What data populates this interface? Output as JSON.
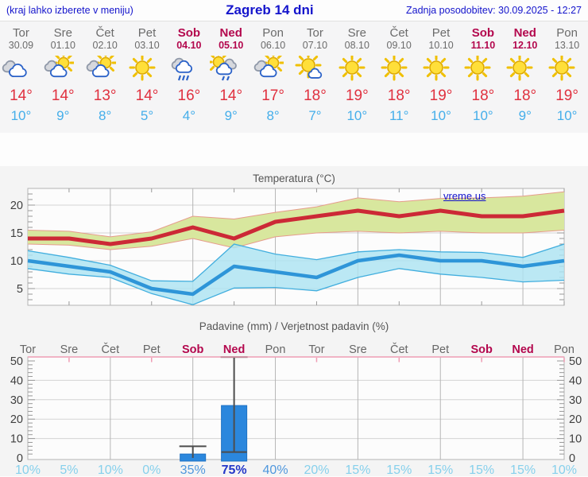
{
  "header": {
    "left_note": "(kraj lahko izberete v meniju)",
    "title": "Zagreb 14 dni",
    "updated": "Zadnja posodobitev: 30.09.2025 - 12:27"
  },
  "days": [
    {
      "name": "Tor",
      "date": "30.09",
      "weekend": false,
      "icon": "cloudy",
      "high": "14°",
      "low": "10°",
      "pop": "10%",
      "pop_level": "low"
    },
    {
      "name": "Sre",
      "date": "01.10",
      "weekend": false,
      "icon": "partly-cloudy",
      "high": "14°",
      "low": "9°",
      "pop": "5%",
      "pop_level": "low"
    },
    {
      "name": "Čet",
      "date": "02.10",
      "weekend": false,
      "icon": "partly-cloudy",
      "high": "13°",
      "low": "8°",
      "pop": "10%",
      "pop_level": "low"
    },
    {
      "name": "Pet",
      "date": "03.10",
      "weekend": false,
      "icon": "sunny",
      "high": "14°",
      "low": "5°",
      "pop": "0%",
      "pop_level": "low"
    },
    {
      "name": "Sob",
      "date": "04.10",
      "weekend": true,
      "icon": "rain",
      "high": "16°",
      "low": "4°",
      "pop": "35%",
      "pop_level": "medium"
    },
    {
      "name": "Ned",
      "date": "05.10",
      "weekend": true,
      "icon": "sun-rain",
      "high": "14°",
      "low": "9°",
      "pop": "75%",
      "pop_level": "high"
    },
    {
      "name": "Pon",
      "date": "06.10",
      "weekend": false,
      "icon": "partly-cloudy",
      "high": "17°",
      "low": "8°",
      "pop": "40%",
      "pop_level": "medium"
    },
    {
      "name": "Tor",
      "date": "07.10",
      "weekend": false,
      "icon": "mostly-sunny",
      "high": "18°",
      "low": "7°",
      "pop": "20%",
      "pop_level": "low"
    },
    {
      "name": "Sre",
      "date": "08.10",
      "weekend": false,
      "icon": "sunny",
      "high": "19°",
      "low": "10°",
      "pop": "15%",
      "pop_level": "low"
    },
    {
      "name": "Čet",
      "date": "09.10",
      "weekend": false,
      "icon": "sunny",
      "high": "18°",
      "low": "11°",
      "pop": "15%",
      "pop_level": "low"
    },
    {
      "name": "Pet",
      "date": "10.10",
      "weekend": false,
      "icon": "sunny",
      "high": "19°",
      "low": "10°",
      "pop": "15%",
      "pop_level": "low"
    },
    {
      "name": "Sob",
      "date": "11.10",
      "weekend": true,
      "icon": "sunny",
      "high": "18°",
      "low": "10°",
      "pop": "15%",
      "pop_level": "low"
    },
    {
      "name": "Ned",
      "date": "12.10",
      "weekend": true,
      "icon": "sunny",
      "high": "18°",
      "low": "9°",
      "pop": "15%",
      "pop_level": "low"
    },
    {
      "name": "Pon",
      "date": "13.10",
      "weekend": false,
      "icon": "sunny",
      "high": "19°",
      "low": "10°",
      "pop": "10%",
      "pop_level": "low"
    }
  ],
  "temp_chart": {
    "title": "Temperatura (°C)",
    "watermark": "vreme.us",
    "y_ticks": [
      5,
      10,
      15,
      20
    ]
  },
  "precip_chart": {
    "title": "Padavine (mm) / Verjetnost padavin (%)",
    "y_ticks": [
      0,
      10,
      20,
      30,
      40,
      50
    ]
  },
  "colors": {
    "header_blue": "#1414cc",
    "weekday_gray": "#6b6b6b",
    "weekend_red": "#b3074d",
    "high_temp_red": "#e0313f",
    "low_temp_blue": "#45aeea",
    "max_line": "#cc2936",
    "max_band": "#d8e79e",
    "max_band_edge": "#e69c8c",
    "min_line": "#2e95d8",
    "min_band": "#ace3f2",
    "min_band_edge": "#41aede",
    "bar_blue": "#2b87dd",
    "bar_edge": "#1f72c4",
    "whisker_gray": "#4d4d4d",
    "pop_low": "#86d0ec",
    "pop_medium": "#4f97dd",
    "pop_high": "#2438c8",
    "grid_pink": "#ef9db4",
    "axis_text": "#3f3f3f"
  },
  "chart_data": [
    {
      "type": "line",
      "title": "Temperatura (°C)",
      "x": [
        "30.09",
        "01.10",
        "02.10",
        "03.10",
        "04.10",
        "05.10",
        "06.10",
        "07.10",
        "08.10",
        "09.10",
        "10.10",
        "11.10",
        "12.10",
        "13.10"
      ],
      "ylim": [
        2,
        23
      ],
      "yticks": [
        5,
        10,
        15,
        20
      ],
      "grid": true,
      "series": [
        {
          "name": "max_temp",
          "values": [
            14,
            14,
            13,
            14,
            16,
            14,
            17,
            18,
            19,
            18,
            19,
            18,
            18,
            19
          ],
          "color": "#cc2936"
        },
        {
          "name": "max_temp_range_upper",
          "values": [
            15.5,
            15.3,
            14.3,
            15.2,
            18,
            17.5,
            18.7,
            19.7,
            21.3,
            20.6,
            21.2,
            21.3,
            21.6,
            22.4
          ],
          "color": "#d8e79e"
        },
        {
          "name": "max_temp_range_lower",
          "values": [
            13,
            12.8,
            12,
            12.6,
            14,
            12.3,
            14.3,
            15,
            15.3,
            15,
            15.3,
            15,
            15,
            15.5
          ],
          "color": "#d8e79e"
        },
        {
          "name": "min_temp",
          "values": [
            10,
            9,
            8,
            5,
            4,
            9,
            8,
            7,
            10,
            11,
            10,
            10,
            9,
            10
          ],
          "color": "#2e95d8"
        },
        {
          "name": "min_temp_range_upper",
          "values": [
            11.8,
            10.6,
            9.2,
            6.4,
            6.3,
            13,
            11.2,
            10.2,
            11.6,
            12,
            11.6,
            11.5,
            10.6,
            13
          ],
          "color": "#ace3f2"
        },
        {
          "name": "min_temp_range_lower",
          "values": [
            8.6,
            7.6,
            7,
            4.1,
            2.1,
            5.1,
            5.2,
            4.6,
            7,
            8.6,
            7.6,
            7,
            6.2,
            6.5
          ],
          "color": "#ace3f2"
        }
      ]
    },
    {
      "type": "bar",
      "title": "Padavine (mm) / Verjetnost padavin (%)",
      "categories": [
        "Tor",
        "Sre",
        "Čet",
        "Pet",
        "Sob",
        "Ned",
        "Pon",
        "Tor",
        "Sre",
        "Čet",
        "Pet",
        "Sob",
        "Ned",
        "Pon"
      ],
      "ylim": [
        0,
        52
      ],
      "yticks": [
        0,
        10,
        20,
        30,
        40,
        50
      ],
      "grid": true,
      "series": [
        {
          "name": "padavine_mm",
          "values": [
            0,
            0,
            0,
            0,
            2,
            27,
            0,
            0,
            0,
            0,
            0,
            0,
            0,
            0
          ],
          "color": "#2b87dd"
        },
        {
          "name": "razpon_max_mm",
          "values": [
            0,
            0,
            0,
            0,
            6,
            52,
            0,
            0,
            0,
            0,
            0,
            0,
            0,
            0
          ],
          "color": "#4d4d4d"
        },
        {
          "name": "razpon_min_mm",
          "values": [
            0,
            0,
            0,
            0,
            0,
            3,
            0,
            0,
            0,
            0,
            0,
            0,
            0,
            0
          ],
          "color": "#4d4d4d"
        },
        {
          "name": "verjetnost_padavin_pct",
          "values": [
            10,
            5,
            10,
            0,
            35,
            75,
            40,
            20,
            15,
            15,
            15,
            15,
            15,
            10
          ],
          "color": "#4f97dd"
        }
      ]
    }
  ]
}
